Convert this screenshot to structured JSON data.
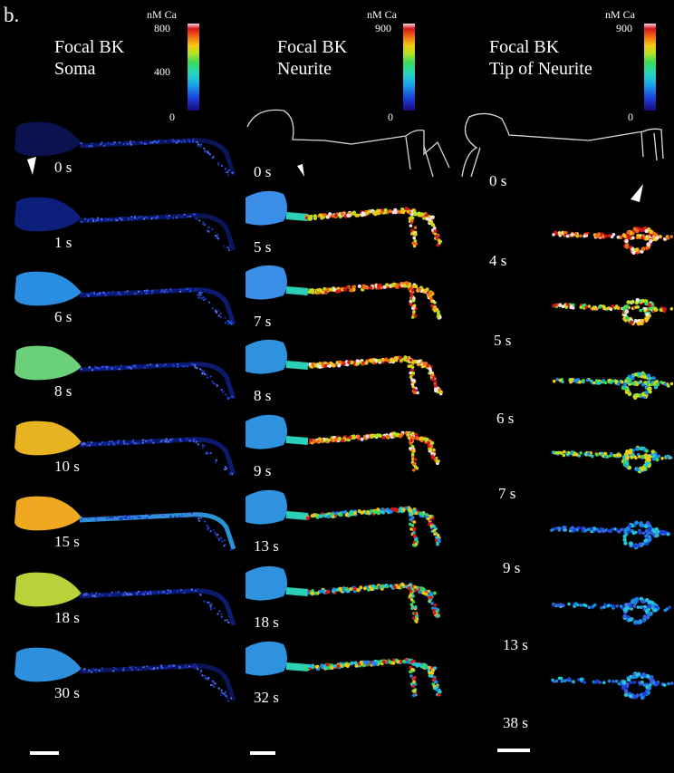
{
  "figure": {
    "panel_label": "b.",
    "columns": [
      {
        "title": "Focal BK\nSoma",
        "colorbar": {
          "unit": "nM Ca",
          "max": "800",
          "mid": "400",
          "min": "0"
        },
        "frames": [
          "0 s",
          "1 s",
          "6 s",
          "8 s",
          "10 s",
          "15 s",
          "18 s",
          "30 s"
        ]
      },
      {
        "title": "Focal BK\nNeurite",
        "colorbar": {
          "unit": "nM Ca",
          "max": "900",
          "min": "0"
        },
        "frames": [
          "0 s",
          "5 s",
          "7 s",
          "8 s",
          "9 s",
          "13 s",
          "18 s",
          "32 s"
        ]
      },
      {
        "title": "Focal BK\nTip of Neurite",
        "colorbar": {
          "unit": "nM Ca",
          "max": "900",
          "min": "0"
        },
        "frames": [
          "0 s",
          "4 s",
          "5 s",
          "6 s",
          "7 s",
          "9 s",
          "13 s",
          "38 s"
        ]
      }
    ],
    "colors": {
      "background": "#000000",
      "low": "#1b3fd8",
      "mid": "#24d6c6",
      "high": "#f26b12",
      "peak": "#d8161a"
    }
  }
}
